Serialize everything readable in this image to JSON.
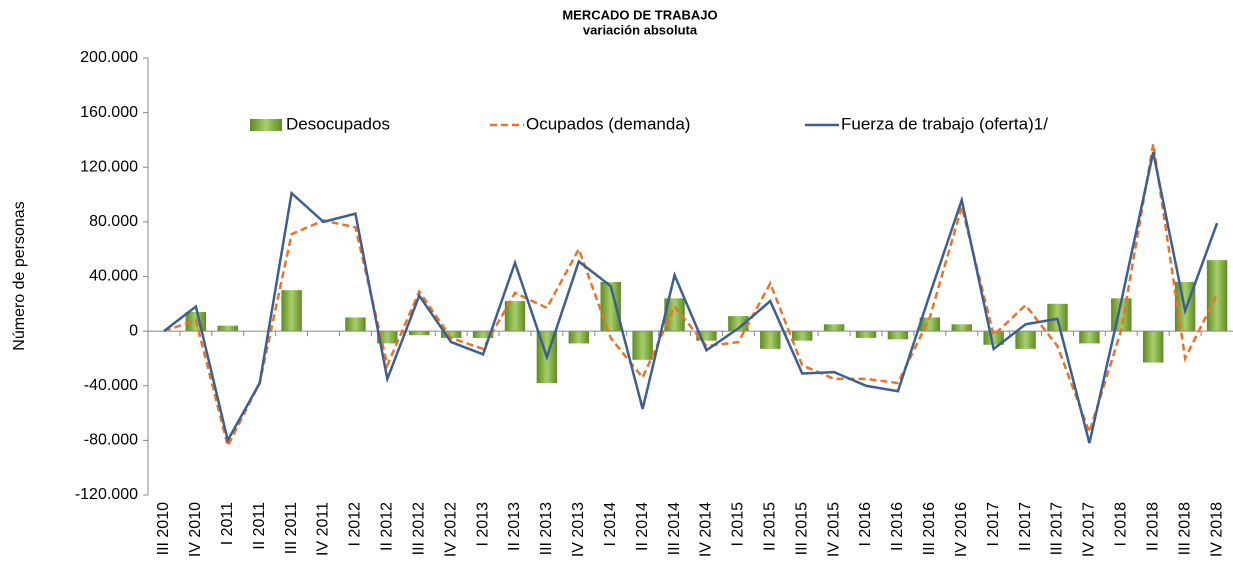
{
  "chart_data": {
    "type": "bar_line",
    "title": "MERCADO DE TRABAJO",
    "subtitle": "variación absoluta",
    "y_label": "Número de personas",
    "categories": [
      "III 2010",
      "IV 2010",
      "I 2011",
      "II 2011",
      "III 2011",
      "IV 2011",
      "I 2012",
      "II 2012",
      "III 2012",
      "IV 2012",
      "I 2013",
      "II 2013",
      "III 2013",
      "IV 2013",
      "I 2014",
      "II 2014",
      "III 2014",
      "IV 2014",
      "I 2015",
      "II 2015",
      "III 2015",
      "IV 2015",
      "I 2016",
      "II 2016",
      "III 2016",
      "IV 2016",
      "I 2017",
      "II 2017",
      "III 2017",
      "IV 2017",
      "I 2018",
      "II 2018",
      "III 2018",
      "IV 2018"
    ],
    "series": [
      {
        "name": "Desocupados",
        "kind": "bar",
        "color": "#7aa83a",
        "values": [
          0,
          14000,
          4000,
          0,
          30000,
          0,
          10000,
          -9000,
          -3000,
          -5000,
          -5000,
          22000,
          -38000,
          -9000,
          36000,
          -21000,
          24000,
          -7000,
          11000,
          -13000,
          -7000,
          5000,
          -5000,
          -6000,
          10000,
          5000,
          -10000,
          -13000,
          20000,
          -9000,
          24000,
          -23000,
          36000,
          52000
        ]
      },
      {
        "name": "Ocupados (demanda)",
        "kind": "dashed",
        "color": "#e8742a",
        "values": [
          0,
          8000,
          -84000,
          -38000,
          71000,
          81000,
          76000,
          -25000,
          29000,
          -5000,
          -13000,
          28000,
          17000,
          60000,
          -5000,
          -34000,
          18000,
          -11000,
          -8000,
          35000,
          -25000,
          -35000,
          -35000,
          -38000,
          10000,
          91000,
          -3000,
          19000,
          -11000,
          -74000,
          1000,
          137000,
          -20000,
          27000
        ]
      },
      {
        "name": "Fuerza de trabajo (oferta)1/",
        "kind": "line",
        "color": "#3d5f8f",
        "values": [
          0,
          18000,
          -80000,
          -38000,
          101000,
          80000,
          86000,
          -35000,
          26000,
          -8000,
          -17000,
          50000,
          -19000,
          51000,
          33000,
          -57000,
          41000,
          -14000,
          2000,
          22000,
          -31000,
          -30000,
          -40000,
          -44000,
          27000,
          96000,
          -13000,
          5000,
          9000,
          -82000,
          22000,
          131000,
          15000,
          79000
        ]
      }
    ],
    "ylim": [
      -120000,
      200000
    ],
    "yticks": [
      {
        "value": -120000,
        "label": "-120.000"
      },
      {
        "value": -80000,
        "label": "-80.000"
      },
      {
        "value": -40000,
        "label": "-40.000"
      },
      0,
      {
        "value": 40000,
        "label": "40.000"
      },
      {
        "value": 80000,
        "label": "80.000"
      },
      {
        "value": 120000,
        "label": "120.000"
      },
      {
        "value": 160000,
        "label": "160.000"
      },
      {
        "value": 200000,
        "label": "200.000"
      }
    ]
  }
}
